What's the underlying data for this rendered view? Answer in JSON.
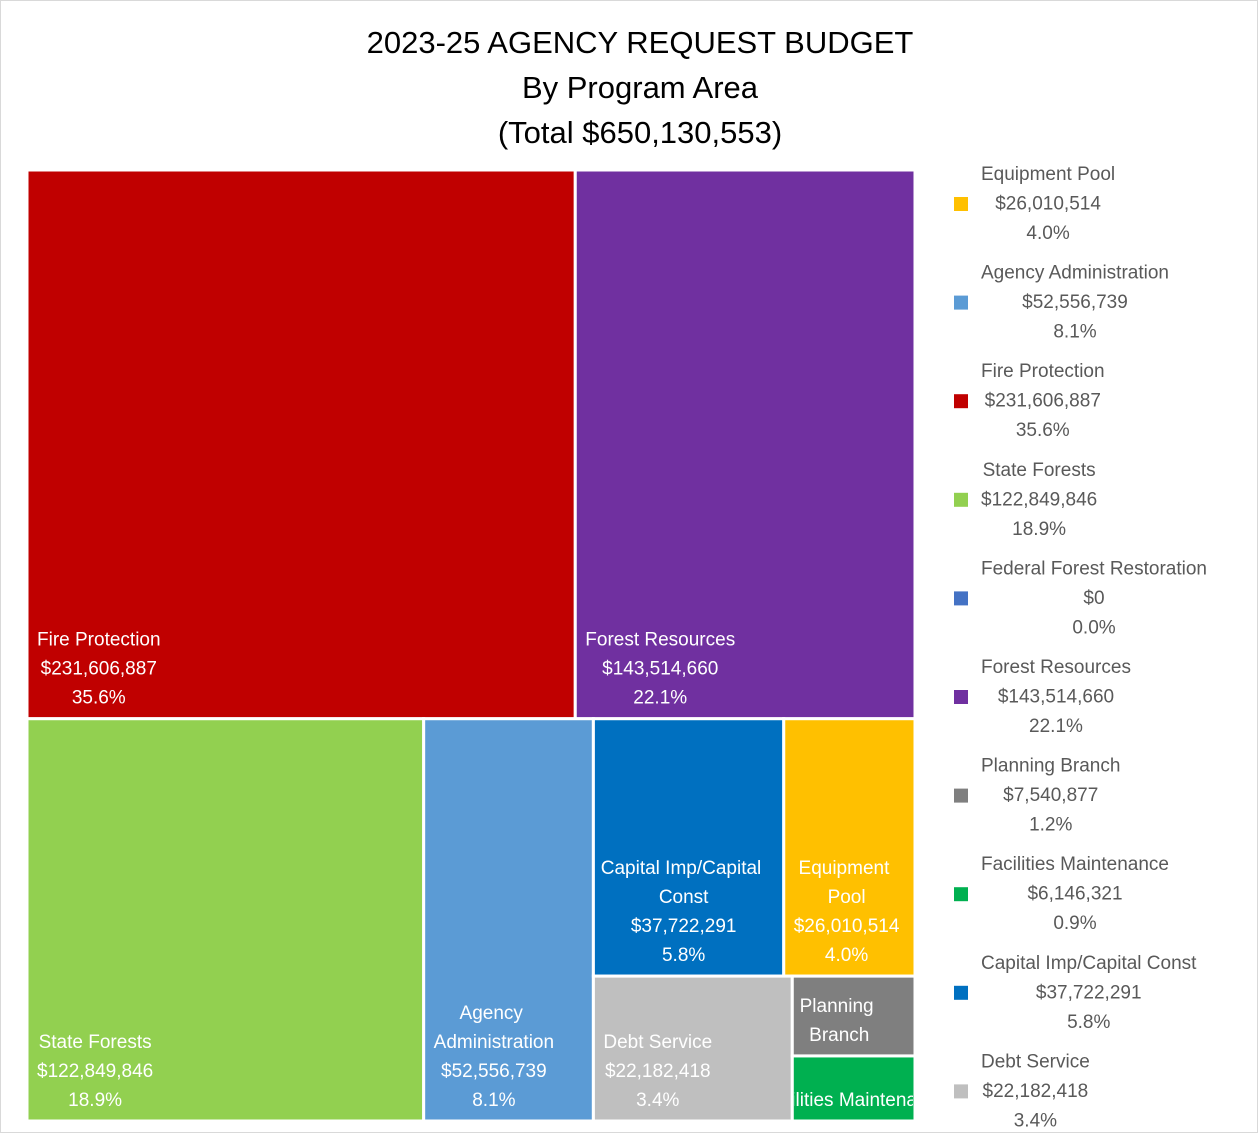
{
  "chart_data": {
    "type": "treemap",
    "title": "2023-25 AGENCY REQUEST BUDGET",
    "subtitle": "By Program Area",
    "note": "(Total $650,130,553)",
    "categories": [
      "Equipment Pool",
      "Agency Administration",
      "Fire Protection",
      "State Forests",
      "Federal Forest Restoration",
      "Forest Resources",
      "Planning Branch",
      "Facilities Maintenance",
      "Capital Imp/Capital Const",
      "Debt Service"
    ],
    "values": [
      26010514,
      52556739,
      231606887,
      122849846,
      0,
      143514660,
      7540877,
      6146321,
      37722291,
      22182418
    ],
    "value_labels": [
      "$26,010,514",
      "$52,556,739",
      "$231,606,887",
      "$122,849,846",
      "$0",
      "$143,514,660",
      "$7,540,877",
      "$6,146,321",
      "$37,722,291",
      "$22,182,418"
    ],
    "percents": [
      4.0,
      8.1,
      35.6,
      18.9,
      0.0,
      22.1,
      1.2,
      0.9,
      5.8,
      3.4
    ],
    "percent_labels": [
      "4.0%",
      "8.1%",
      "35.6%",
      "18.9%",
      "0.0%",
      "22.1%",
      "1.2%",
      "0.9%",
      "5.8%",
      "3.4%"
    ],
    "colors": [
      "#ffc000",
      "#5b9bd5",
      "#c00000",
      "#92d050",
      "#4472c4",
      "#7030a0",
      "#7f7f7f",
      "#00b050",
      "#0070c0",
      "#bfbfbf"
    ],
    "legend": "right"
  }
}
